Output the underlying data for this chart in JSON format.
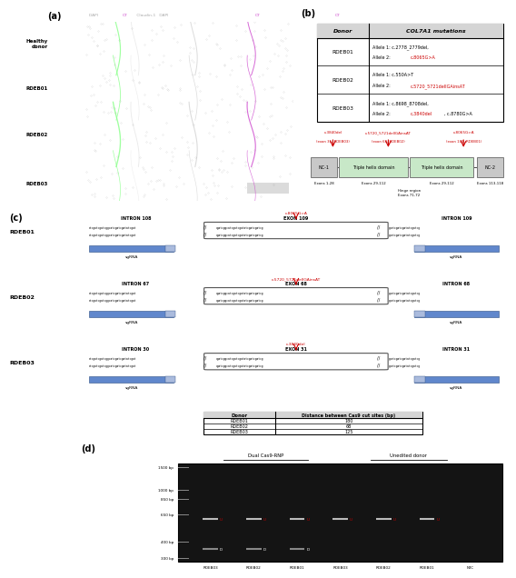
{
  "panel_a_label": "(a)",
  "panel_b_label": "(b)",
  "panel_c_label": "(c)",
  "panel_d_label": "(d)",
  "microscopy_header": [
    "DAPI ",
    "C7",
    " Claudin-1   DAPI ",
    "C7",
    "          ",
    "C7"
  ],
  "microscopy_header_colors": [
    "#aaaaaa",
    "#cc44cc",
    "#aaaaaa",
    "#cc44cc",
    "#aaaaaa",
    "#cc44cc"
  ],
  "row_labels_a": [
    "Healthy\ndonor",
    "RDEB01",
    "RDEB02",
    "RDEB03"
  ],
  "table_b_rows": [
    [
      "RDEB01",
      "Allele 1: c.2778_2779del,",
      "Allele 2: ",
      "c.8065G>A",
      ""
    ],
    [
      "RDEB02",
      "Allele 1: c.550A>T",
      "Allele 2: ",
      "c.5720_5721delIGAinsAT",
      ""
    ],
    [
      "RDEB03",
      "Allele 1: c.8698_8708del,",
      "Allele 2: ",
      "c.3840del",
      ", c.8780G>A"
    ]
  ],
  "domain_labels": [
    "NC-1",
    "Triple helix domain",
    "Triple helix domain",
    "NC-2"
  ],
  "domain_colors": [
    "#c8c8c8",
    "#c8e8c8",
    "#c8e8c8",
    "#c8c8c8"
  ],
  "exon_labels_domain": [
    "Exons 1-28",
    "Exons 29-112",
    "Exons 29-112",
    "Exons 113-118"
  ],
  "hinge_label": "Hinge region\nExons 71-72",
  "red_annot_labels": [
    "c.3840del",
    "c.5720_5721delIGAinsAT",
    "c.8065G>A"
  ],
  "red_annot_sublabels": [
    "(exon 31, RDEB03)",
    "(exon 68, RDEB02)",
    "(exon 109, RDEB01)"
  ],
  "rdeb01_parts": [
    "INTRON 108",
    "EXON 109",
    "INTRON 109"
  ],
  "rdeb01_mutation": "c.8065G>A",
  "rdeb02_parts": [
    "INTRON 67",
    "EXON 68",
    "INTRON 68"
  ],
  "rdeb02_mutation": "c.5720_5721delIGAinsAT",
  "rdeb03_parts": [
    "INTRON 30",
    "EXON 31",
    "INTRON 31"
  ],
  "rdeb03_mutation": "c.3840del",
  "table_c_rows": [
    [
      "RDEB01",
      "180"
    ],
    [
      "RDEB02",
      "68"
    ],
    [
      "RDEB03",
      "125"
    ]
  ],
  "gel_sample_labels": [
    "RDEB03",
    "RDEB02",
    "RDEB01",
    "RDEB03",
    "RDEB02",
    "RDEB01",
    "NTC"
  ],
  "gel_ladder_labels": [
    "1500 bp",
    "1000 bp",
    "850 bp",
    "650 bp",
    "400 bp",
    "300 bp"
  ],
  "gel_ladder_values": [
    1500,
    1000,
    850,
    650,
    400,
    300
  ],
  "bg_color": "#ffffff",
  "red_color": "#cc0000",
  "sgRNA_color": "#4472c4",
  "sgRNA_light": "#aabbdd",
  "microscopy_bg": "#0d0d0d"
}
